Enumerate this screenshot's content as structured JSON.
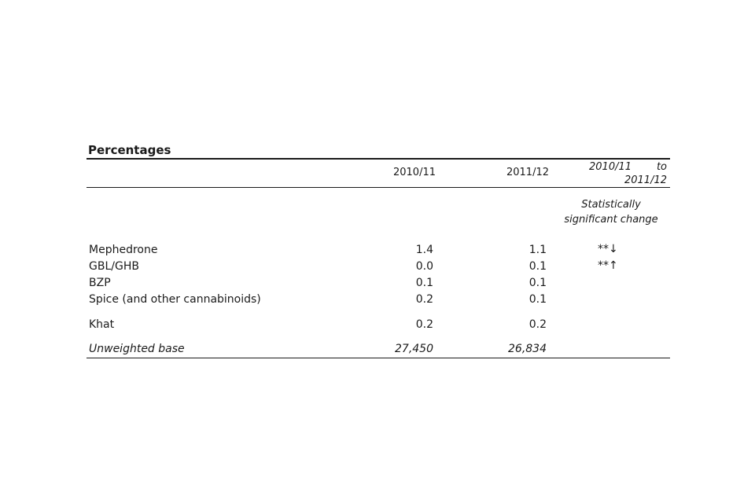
{
  "table": {
    "unit_label": "Percentages",
    "columns": {
      "year1": "2010/11",
      "year2": "2011/12",
      "change_from": "2010/11",
      "change_to_word": "to",
      "change_to": "2011/12",
      "change_subheader_line1": "Statistically",
      "change_subheader_line2": "significant change"
    },
    "rows": [
      {
        "label": "Mephedrone",
        "year1": "1.4",
        "year2": "1.1",
        "change": "**↓"
      },
      {
        "label": "GBL/GHB",
        "year1": "0.0",
        "year2": "0.1",
        "change": "**↑"
      },
      {
        "label": "BZP",
        "year1": "0.1",
        "year2": "0.1",
        "change": ""
      },
      {
        "label": "Spice (and other cannabinoids)",
        "year1": "0.2",
        "year2": "0.1",
        "change": ""
      },
      {
        "label": "Khat",
        "year1": "0.2",
        "year2": "0.2",
        "change": ""
      }
    ],
    "base": {
      "label": "Unweighted base",
      "year1": "27,450",
      "year2": "26,834"
    }
  }
}
